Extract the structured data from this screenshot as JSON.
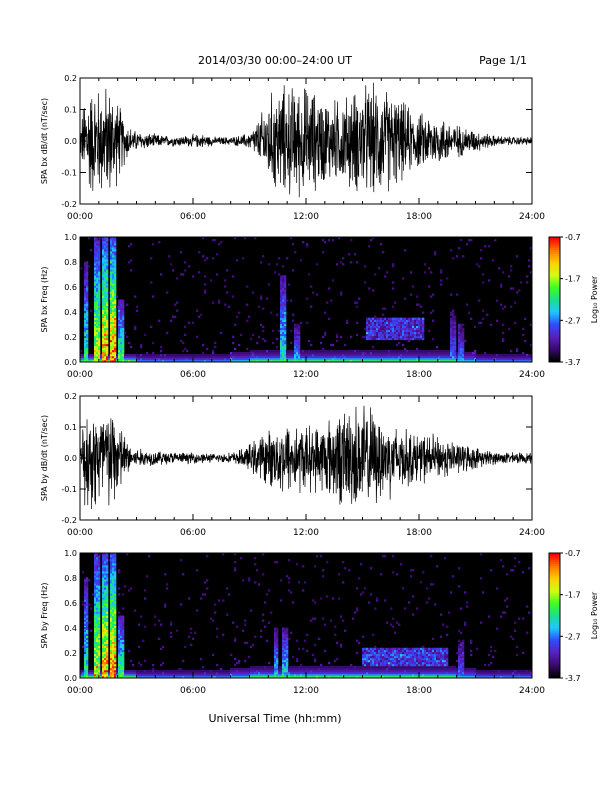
{
  "header": {
    "title": "2014/03/30  00:00–24:00 UT",
    "page": "Page 1/1"
  },
  "xlabel": "Universal Time (hh:mm)",
  "colors": {
    "trace": "#000000",
    "background": "#ffffff",
    "colormap": [
      "#000000",
      "#3a0a6e",
      "#5a1fbf",
      "#2f4cff",
      "#1ec8ff",
      "#19e08a",
      "#3cff20",
      "#cfff10",
      "#ffd000",
      "#ff7a00",
      "#ff0000"
    ]
  },
  "chart_data": [
    {
      "type": "line",
      "ylabel": "SPA bx dB/dt (nT/sec)",
      "x_unit": "hours UT",
      "xlim": [
        0,
        24
      ],
      "ylim": [
        -0.2,
        0.2
      ],
      "xticks": [
        "00:00",
        "06:00",
        "12:00",
        "18:00",
        "24:00"
      ],
      "yticks": [
        "-0.2",
        "-0.1",
        "0.0",
        "0.1",
        "0.2"
      ],
      "series": [
        {
          "envelope_hours": [
            0,
            0.3,
            0.7,
            1.0,
            1.3,
            1.6,
            2.0,
            2.4,
            2.8,
            3.5,
            4.5,
            5.5,
            6.5,
            7.2,
            8.0,
            8.5,
            9.0,
            9.5,
            10.0,
            10.5,
            11.0,
            11.5,
            12.0,
            12.5,
            13.0,
            13.5,
            14.0,
            14.5,
            15.0,
            15.5,
            16.0,
            16.5,
            17.0,
            17.5,
            18.0,
            18.5,
            19.0,
            19.5,
            20.0,
            20.5,
            21.0,
            21.5,
            22.0,
            23.0,
            24.0
          ],
          "envelope_amplitude": [
            0.04,
            0.2,
            0.2,
            0.2,
            0.2,
            0.2,
            0.15,
            0.08,
            0.04,
            0.03,
            0.02,
            0.02,
            0.025,
            0.015,
            0.015,
            0.02,
            0.03,
            0.08,
            0.16,
            0.2,
            0.2,
            0.2,
            0.2,
            0.18,
            0.16,
            0.15,
            0.16,
            0.18,
            0.2,
            0.2,
            0.2,
            0.18,
            0.15,
            0.12,
            0.1,
            0.1,
            0.09,
            0.08,
            0.06,
            0.05,
            0.04,
            0.03,
            0.02,
            0.015,
            0.015
          ]
        }
      ]
    },
    {
      "type": "heatmap",
      "ylabel": "SPA bx Freq (Hz)",
      "xlim": [
        0,
        24
      ],
      "ylim": [
        0,
        1.0
      ],
      "xticks": [
        "00:00",
        "06:00",
        "12:00",
        "18:00",
        "24:00"
      ],
      "yticks": [
        "0.0",
        "0.2",
        "0.4",
        "0.6",
        "0.8",
        "1.0"
      ],
      "colorbar": {
        "label": "Log₁₀ Power",
        "range": [
          -3.7,
          -0.7
        ],
        "ticks": [
          "-0.7",
          "-1.7",
          "-2.7",
          "-3.7"
        ]
      },
      "features": [
        {
          "hour": 0.3,
          "fmax": 0.8,
          "level": 0.55
        },
        {
          "hour": 0.9,
          "fmax": 1.0,
          "level": 0.75
        },
        {
          "hour": 1.3,
          "fmax": 1.0,
          "level": 0.9
        },
        {
          "hour": 1.75,
          "fmax": 1.0,
          "level": 0.95
        },
        {
          "hour": 2.2,
          "fmax": 0.5,
          "level": 0.6
        },
        {
          "hour": 10.8,
          "fmax": 0.7,
          "level": 0.5
        },
        {
          "hour": 11.5,
          "fmax": 0.3,
          "level": 0.4
        },
        {
          "hour": 19.8,
          "fmax": 0.4,
          "level": 0.35
        },
        {
          "hour": 20.2,
          "fmax": 0.3,
          "level": 0.35
        }
      ],
      "patches": [
        {
          "h0": 15.2,
          "h1": 18.3,
          "f0": 0.18,
          "f1": 0.35,
          "level": 0.28
        }
      ]
    },
    {
      "type": "line",
      "ylabel": "SPA by dB/dt (nT/sec)",
      "x_unit": "hours UT",
      "xlim": [
        0,
        24
      ],
      "ylim": [
        -0.2,
        0.2
      ],
      "xticks": [
        "00:00",
        "06:00",
        "12:00",
        "18:00",
        "24:00"
      ],
      "yticks": [
        "-0.2",
        "-0.1",
        "0.0",
        "0.1",
        "0.2"
      ],
      "series": [
        {
          "envelope_hours": [
            0,
            0.3,
            0.7,
            1.0,
            1.3,
            1.6,
            2.0,
            2.4,
            2.8,
            3.5,
            4.5,
            5.5,
            6.5,
            7.2,
            8.0,
            8.5,
            9.0,
            9.5,
            10.0,
            10.5,
            11.0,
            11.5,
            12.0,
            12.5,
            13.0,
            13.5,
            14.0,
            14.5,
            15.0,
            15.5,
            16.0,
            16.5,
            17.0,
            17.5,
            18.0,
            18.5,
            19.0,
            19.5,
            20.0,
            20.5,
            21.0,
            21.5,
            22.0,
            23.0,
            24.0
          ],
          "envelope_amplitude": [
            0.04,
            0.2,
            0.2,
            0.2,
            0.2,
            0.2,
            0.16,
            0.08,
            0.04,
            0.03,
            0.025,
            0.02,
            0.02,
            0.015,
            0.02,
            0.03,
            0.05,
            0.08,
            0.1,
            0.12,
            0.14,
            0.13,
            0.12,
            0.12,
            0.14,
            0.16,
            0.18,
            0.2,
            0.2,
            0.18,
            0.16,
            0.14,
            0.12,
            0.1,
            0.09,
            0.09,
            0.08,
            0.07,
            0.06,
            0.05,
            0.04,
            0.03,
            0.025,
            0.02,
            0.02
          ]
        }
      ]
    },
    {
      "type": "heatmap",
      "ylabel": "SPA by Freq (Hz)",
      "xlim": [
        0,
        24
      ],
      "ylim": [
        0,
        1.0
      ],
      "xticks": [
        "00:00",
        "06:00",
        "12:00",
        "18:00",
        "24:00"
      ],
      "yticks": [
        "0.0",
        "0.2",
        "0.4",
        "0.6",
        "0.8",
        "1.0"
      ],
      "colorbar": {
        "label": "Log₁₀ Power",
        "range": [
          -3.7,
          -0.7
        ],
        "ticks": [
          "-0.7",
          "-1.7",
          "-2.7",
          "-3.7"
        ]
      },
      "features": [
        {
          "hour": 0.3,
          "fmax": 0.8,
          "level": 0.55
        },
        {
          "hour": 0.9,
          "fmax": 1.0,
          "level": 0.75
        },
        {
          "hour": 1.3,
          "fmax": 1.0,
          "level": 0.9
        },
        {
          "hour": 1.75,
          "fmax": 1.0,
          "level": 0.95
        },
        {
          "hour": 2.2,
          "fmax": 0.5,
          "level": 0.6
        },
        {
          "hour": 10.4,
          "fmax": 0.4,
          "level": 0.45
        },
        {
          "hour": 10.9,
          "fmax": 0.4,
          "level": 0.5
        },
        {
          "hour": 20.2,
          "fmax": 0.3,
          "level": 0.35
        }
      ],
      "patches": [
        {
          "h0": 15.0,
          "h1": 19.5,
          "f0": 0.1,
          "f1": 0.25,
          "level": 0.3
        }
      ]
    }
  ]
}
